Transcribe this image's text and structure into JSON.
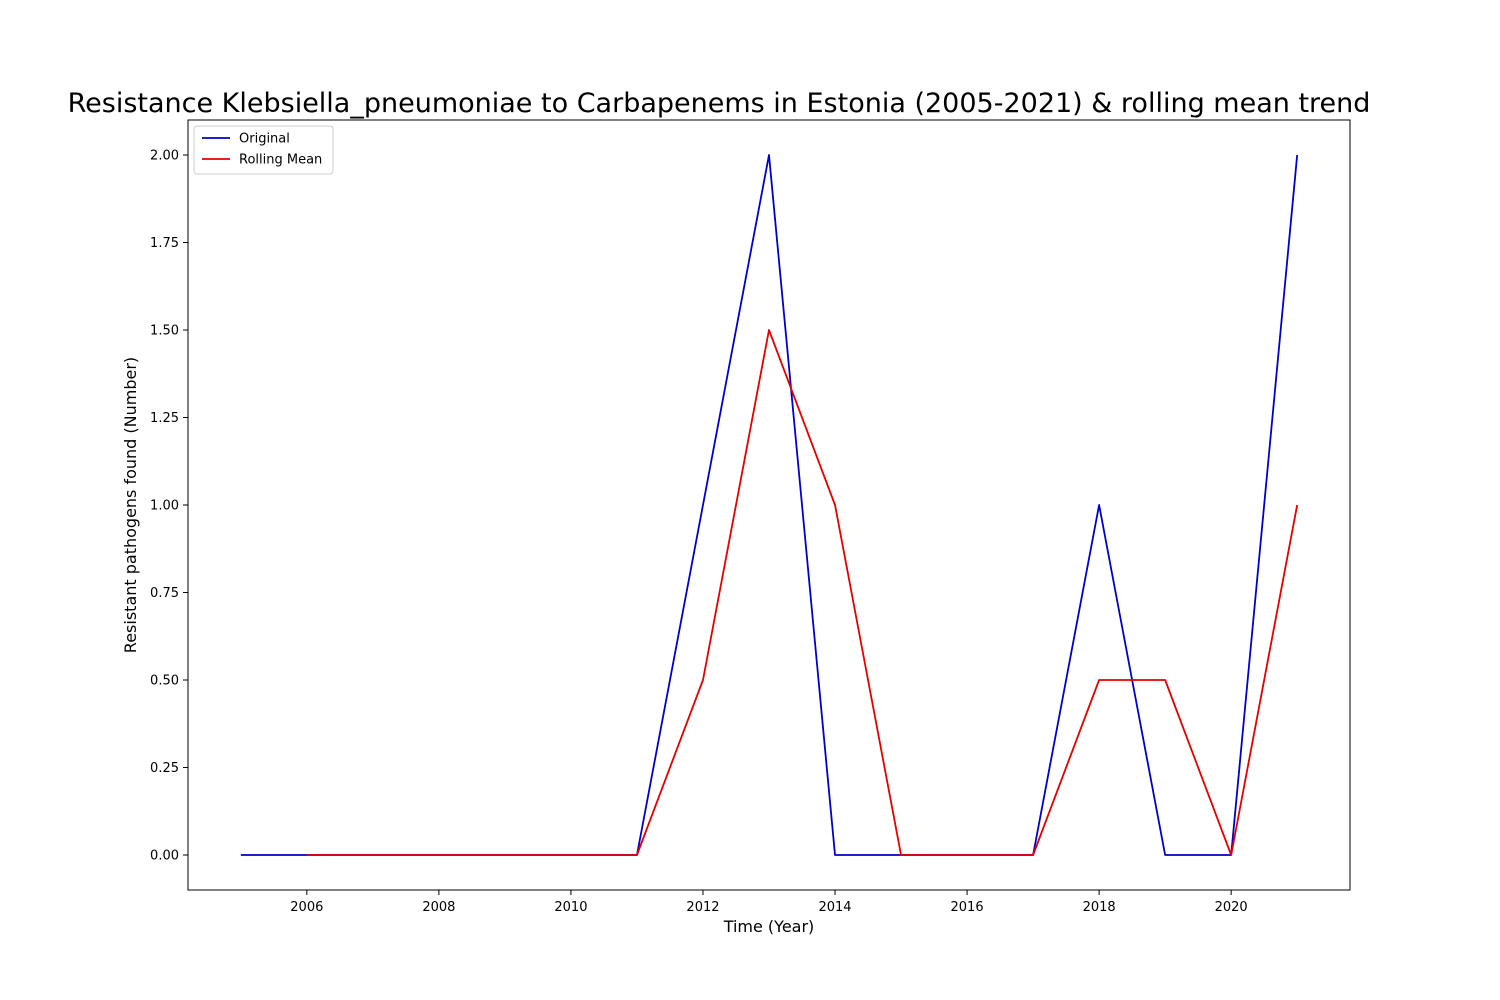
{
  "chart_data": {
    "type": "line",
    "title": "Resistance Klebsiella_pneumoniae to Carbapenems in Estonia (2005-2021) & rolling mean trend",
    "xlabel": "Time (Year)",
    "ylabel": "Resistant pathogens found (Number)",
    "xlim": [
      2004.2,
      2021.8
    ],
    "ylim": [
      -0.1,
      2.1
    ],
    "xticks": [
      2006,
      2008,
      2010,
      2012,
      2014,
      2016,
      2018,
      2020
    ],
    "yticks": [
      0.0,
      0.25,
      0.5,
      0.75,
      1.0,
      1.25,
      1.5,
      1.75,
      2.0
    ],
    "ytick_labels": [
      "0.00",
      "0.25",
      "0.50",
      "0.75",
      "1.00",
      "1.25",
      "1.50",
      "1.75",
      "2.00"
    ],
    "grid": false,
    "legend_position": "top-left",
    "series": [
      {
        "name": "Original",
        "color": "#0000cc",
        "x": [
          2005,
          2006,
          2007,
          2008,
          2009,
          2010,
          2011,
          2012,
          2013,
          2014,
          2015,
          2016,
          2017,
          2018,
          2019,
          2020,
          2021
        ],
        "y": [
          0,
          0,
          0,
          0,
          0,
          0,
          0,
          1,
          2,
          0,
          0,
          0,
          0,
          1,
          0,
          0,
          2
        ]
      },
      {
        "name": "Rolling Mean",
        "color": "#e60000",
        "x": [
          2006,
          2007,
          2008,
          2009,
          2010,
          2011,
          2012,
          2013,
          2014,
          2015,
          2016,
          2017,
          2018,
          2019,
          2020,
          2021
        ],
        "y": [
          0,
          0,
          0,
          0,
          0,
          0,
          0.5,
          1.5,
          1.0,
          0,
          0,
          0,
          0.5,
          0.5,
          0,
          1.0
        ]
      }
    ]
  }
}
